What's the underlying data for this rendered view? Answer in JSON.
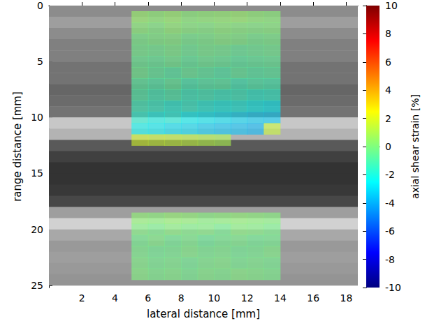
{
  "chart_data": {
    "type": "heatmap",
    "x_label": "lateral distance [mm]",
    "y_label": "range distance [mm]",
    "xlim": [
      0,
      18.7
    ],
    "xticks": [
      2,
      4,
      6,
      8,
      10,
      12,
      14,
      16,
      18
    ],
    "ylim": [
      0,
      25.2
    ],
    "yticks": [
      0,
      5,
      10,
      15,
      20,
      25
    ],
    "image": {
      "y": [
        0.5,
        1.5,
        2.5,
        3.5,
        4.5,
        5.5,
        6.5,
        7.5,
        8.5,
        9.5,
        10.5,
        11.5,
        12.5,
        13.5,
        14.5,
        15.5,
        16.5,
        17.5,
        18.5,
        19.5,
        20.5,
        21.5,
        22.5,
        23.5,
        24.5
      ],
      "values": [
        0.55,
        0.62,
        0.55,
        0.5,
        0.5,
        0.45,
        0.45,
        0.4,
        0.42,
        0.45,
        0.78,
        0.7,
        0.35,
        0.25,
        0.2,
        0.2,
        0.22,
        0.28,
        0.62,
        0.82,
        0.66,
        0.6,
        0.62,
        0.6,
        0.58
      ]
    },
    "strain": {
      "x": [
        5.5,
        6.5,
        7.5,
        8.5,
        9.5,
        10.5,
        11.5,
        12.5,
        13.5
      ],
      "y": [
        1,
        2,
        3,
        4,
        5,
        6,
        7,
        8,
        9,
        10,
        11,
        12,
        19,
        20,
        21,
        22,
        23,
        24
      ],
      "values": [
        [
          0.5,
          0.3,
          0.5,
          0.2,
          0.3,
          0.4,
          0.5,
          0.3,
          0.2
        ],
        [
          0.2,
          0.0,
          0.3,
          0.1,
          0.0,
          0.2,
          0.1,
          0.0,
          0.1
        ],
        [
          -0.2,
          -0.1,
          0.0,
          -0.3,
          -0.2,
          0.0,
          -0.1,
          -0.3,
          -0.2
        ],
        [
          -0.3,
          -0.4,
          -0.2,
          -0.5,
          -0.3,
          -0.4,
          -0.6,
          -0.5,
          -0.4
        ],
        [
          -0.5,
          -0.6,
          -0.4,
          -0.7,
          -0.5,
          -0.6,
          -0.8,
          -0.7,
          -0.6
        ],
        [
          -0.4,
          -0.7,
          -0.9,
          -0.6,
          -0.8,
          -1.0,
          -0.7,
          -0.9,
          -0.8
        ],
        [
          -0.8,
          -1.0,
          -0.7,
          -1.2,
          -1.0,
          -0.9,
          -1.3,
          -1.1,
          -1.2
        ],
        [
          -1.0,
          -1.3,
          -1.1,
          -1.5,
          -1.4,
          -1.6,
          -1.5,
          -1.8,
          -1.7
        ],
        [
          -1.4,
          -1.6,
          -1.9,
          -1.7,
          -2.0,
          -2.2,
          -2.1,
          -2.4,
          -2.6
        ],
        [
          -1.8,
          -2.2,
          -2.0,
          -2.5,
          -2.7,
          -2.9,
          -3.1,
          -3.3,
          -3.4
        ],
        [
          -2.4,
          -2.6,
          -2.9,
          -3.0,
          -3.3,
          -3.5,
          -3.6,
          -3.8,
          1.5
        ],
        [
          1.8,
          1.6,
          1.5,
          1.4,
          1.2,
          1.0,
          null,
          null,
          null
        ],
        [
          0.3,
          0.2,
          0.4,
          0.3,
          0.1,
          0.2,
          0.3,
          0.2,
          0.1
        ],
        [
          0.0,
          -0.2,
          0.1,
          -0.1,
          0.0,
          -0.3,
          0.1,
          0.0,
          -0.2
        ],
        [
          -0.3,
          -0.1,
          -0.4,
          -0.2,
          -0.5,
          -0.3,
          -0.2,
          -0.4,
          -0.3
        ],
        [
          -0.2,
          -0.4,
          -0.3,
          -0.1,
          -0.3,
          -0.2,
          -0.4,
          -0.3,
          -0.1
        ],
        [
          -0.1,
          -0.3,
          -0.2,
          -0.4,
          -0.2,
          -0.1,
          -0.3,
          -0.2,
          -0.3
        ],
        [
          0.0,
          -0.2,
          -0.1,
          -0.3,
          -0.1,
          -0.2,
          0.0,
          -0.1,
          -0.2
        ]
      ]
    },
    "colorbar": {
      "label": "axial shear strain [%]",
      "lim": [
        -10,
        10
      ],
      "ticks": [
        -10,
        -8,
        -6,
        -4,
        -2,
        0,
        2,
        4,
        6,
        8,
        10
      ]
    }
  }
}
